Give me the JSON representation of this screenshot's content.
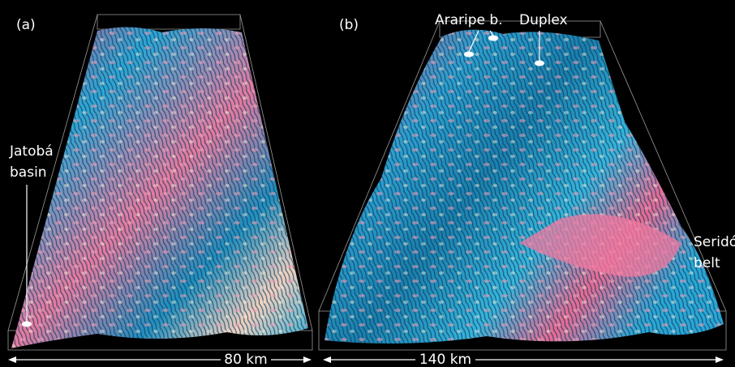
{
  "panels": [
    {
      "label": "(a)",
      "annotations": [
        {
          "lines": [
            "Jatobá",
            "basin"
          ]
        }
      ],
      "scale": "80 km"
    },
    {
      "label": "(b)",
      "annotations": [
        {
          "lines": [
            "Araripe b."
          ]
        },
        {
          "lines": [
            "Duplex"
          ]
        },
        {
          "lines": [
            "Seridó",
            "belt"
          ]
        }
      ],
      "scale": "140 km"
    }
  ]
}
